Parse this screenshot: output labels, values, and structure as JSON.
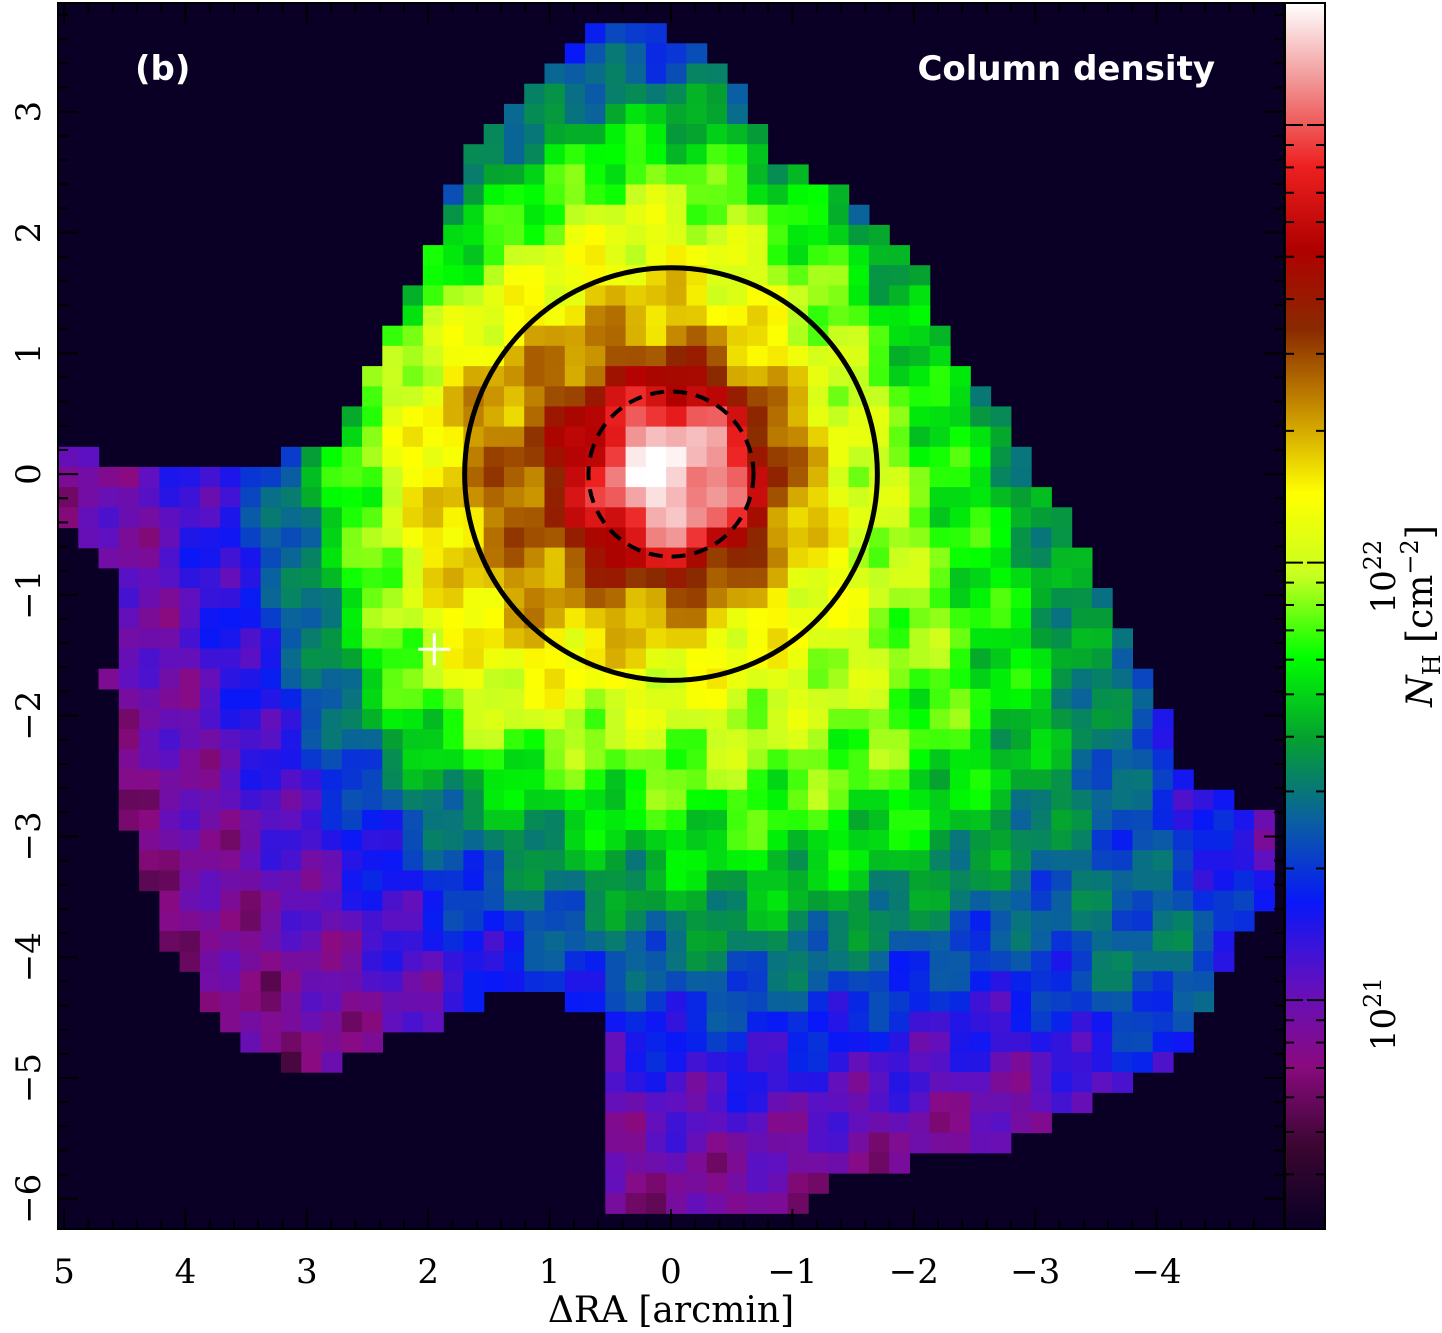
{
  "chart_data": {
    "type": "heatmap",
    "panel_label": "(b)",
    "title": "Column density",
    "xlabel": "ΔRA [arcmin]",
    "xlim": [
      5.05,
      -5.05
    ],
    "x_ticks": [
      5,
      4,
      3,
      2,
      1,
      0,
      -1,
      -2,
      -3,
      -4
    ],
    "x_tick_labels": [
      "5",
      "4",
      "3",
      "2",
      "1",
      "0",
      "−1",
      "−2",
      "−3",
      "−4"
    ],
    "ylim": [
      -6.25,
      3.9
    ],
    "y_ticks": [
      3,
      2,
      1,
      0,
      -1,
      -2,
      -3,
      -4,
      -5,
      -6
    ],
    "y_tick_labels": [
      "3",
      "2",
      "1",
      "0",
      "−1",
      "−2",
      "−3",
      "−4",
      "−5",
      "−6"
    ],
    "colorbar": {
      "label_symbol": "N",
      "label_subscript": "H",
      "label_units_pre": " [cm",
      "label_units_sup": "−2",
      "label_units_post": "]",
      "scale": "log",
      "range": [
        3e+20,
        1.9e+23
      ],
      "ticks": [
        {
          "value": 1e+21,
          "base": "10",
          "exp": "21"
        },
        {
          "value": 1e+22,
          "base": "10",
          "exp": "22"
        }
      ],
      "colormap": [
        "#0a0025",
        "#3a0630",
        "#8a0a80",
        "#6010c0",
        "#0818f8",
        "#0a60a0",
        "#05a030",
        "#00ff00",
        "#c8ff20",
        "#ffff00",
        "#c89000",
        "#8a2a00",
        "#b00000",
        "#ee2020",
        "#f09090",
        "#ffffff"
      ]
    },
    "map_extent_arcmin": {
      "x": [
        5.05,
        -5.05
      ],
      "y": [
        -6.25,
        3.9
      ]
    },
    "pixel_size_arcmin": 0.167,
    "peak": {
      "x": 0.0,
      "y": 0.0,
      "nh": 1.7e+23
    },
    "circles": [
      {
        "center": [
          0,
          0
        ],
        "radius_arcmin": 1.7,
        "style": "solid"
      },
      {
        "center": [
          0,
          0
        ],
        "radius_arcmin": 0.68,
        "style": "dashed"
      }
    ],
    "marker": {
      "x": 1.95,
      "y": -1.45,
      "symbol": "+"
    },
    "boundary": [
      [
        0.5,
        3.75
      ],
      [
        -0.1,
        3.6
      ],
      [
        -0.6,
        3.2
      ],
      [
        -0.9,
        2.6
      ],
      [
        -1.45,
        2.3
      ],
      [
        -2.1,
        1.6
      ],
      [
        -2.3,
        1.05
      ],
      [
        -2.7,
        0.55
      ],
      [
        -3.15,
        -0.25
      ],
      [
        -3.5,
        -0.8
      ],
      [
        -3.85,
        -1.6
      ],
      [
        -4.25,
        -2.45
      ],
      [
        -4.6,
        -2.7
      ],
      [
        -5.0,
        -2.75
      ],
      [
        -5.0,
        -3.5
      ],
      [
        -4.75,
        -3.8
      ],
      [
        -4.5,
        -4.2
      ],
      [
        -4.25,
        -4.7
      ],
      [
        -3.8,
        -5.1
      ],
      [
        -3.3,
        -5.3
      ],
      [
        -2.7,
        -5.6
      ],
      [
        -2.0,
        -5.6
      ],
      [
        -1.8,
        -5.85
      ],
      [
        -1.3,
        -5.85
      ],
      [
        -0.9,
        -6.2
      ],
      [
        0.5,
        -6.2
      ],
      [
        0.5,
        -4.5
      ],
      [
        1.2,
        -4.2
      ],
      [
        1.6,
        -4.45
      ],
      [
        2.3,
        -4.7
      ],
      [
        3.0,
        -4.95
      ],
      [
        3.5,
        -4.75
      ],
      [
        3.9,
        -4.3
      ],
      [
        4.2,
        -3.8
      ],
      [
        4.45,
        -3.1
      ],
      [
        4.5,
        -2.5
      ],
      [
        4.65,
        -1.7
      ],
      [
        4.5,
        -1.0
      ],
      [
        4.85,
        -0.45
      ],
      [
        5.0,
        -0.4
      ],
      [
        5.0,
        0.25
      ],
      [
        4.2,
        0.0
      ],
      [
        3.35,
        0.1
      ],
      [
        2.8,
        0.25
      ],
      [
        2.5,
        0.8
      ],
      [
        2.3,
        1.3
      ],
      [
        2.0,
        1.9
      ],
      [
        1.85,
        2.2
      ],
      [
        1.55,
        2.85
      ],
      [
        0.9,
        3.45
      ]
    ],
    "blobs": [
      {
        "x": 0.0,
        "y": 0.0,
        "nh": 1.6e+23,
        "sigma": 0.42
      },
      {
        "x": 0.1,
        "y": 0.05,
        "nh": 1.6e+22,
        "sigma": 1.05
      },
      {
        "x": -0.2,
        "y": 0.0,
        "nh": 5.5e+21,
        "sigma": 1.9
      },
      {
        "x": 0.2,
        "y": 1.8,
        "nh": 5e+21,
        "sigma": 0.8
      },
      {
        "x": 1.3,
        "y": 0.2,
        "nh": 1.2e+22,
        "sigma": 0.8
      },
      {
        "x": 1.5,
        "y": -1.3,
        "nh": 6.5e+21,
        "sigma": 0.7
      },
      {
        "x": -0.5,
        "y": -2.2,
        "nh": 3.5e+21,
        "sigma": 1.4
      },
      {
        "x": -2.3,
        "y": -1.8,
        "nh": 2.6e+21,
        "sigma": 1.2
      },
      {
        "x": -4.0,
        "y": -4.0,
        "nh": 1.8e+21,
        "sigma": 0.65
      }
    ],
    "background_nh": 7e+20
  }
}
